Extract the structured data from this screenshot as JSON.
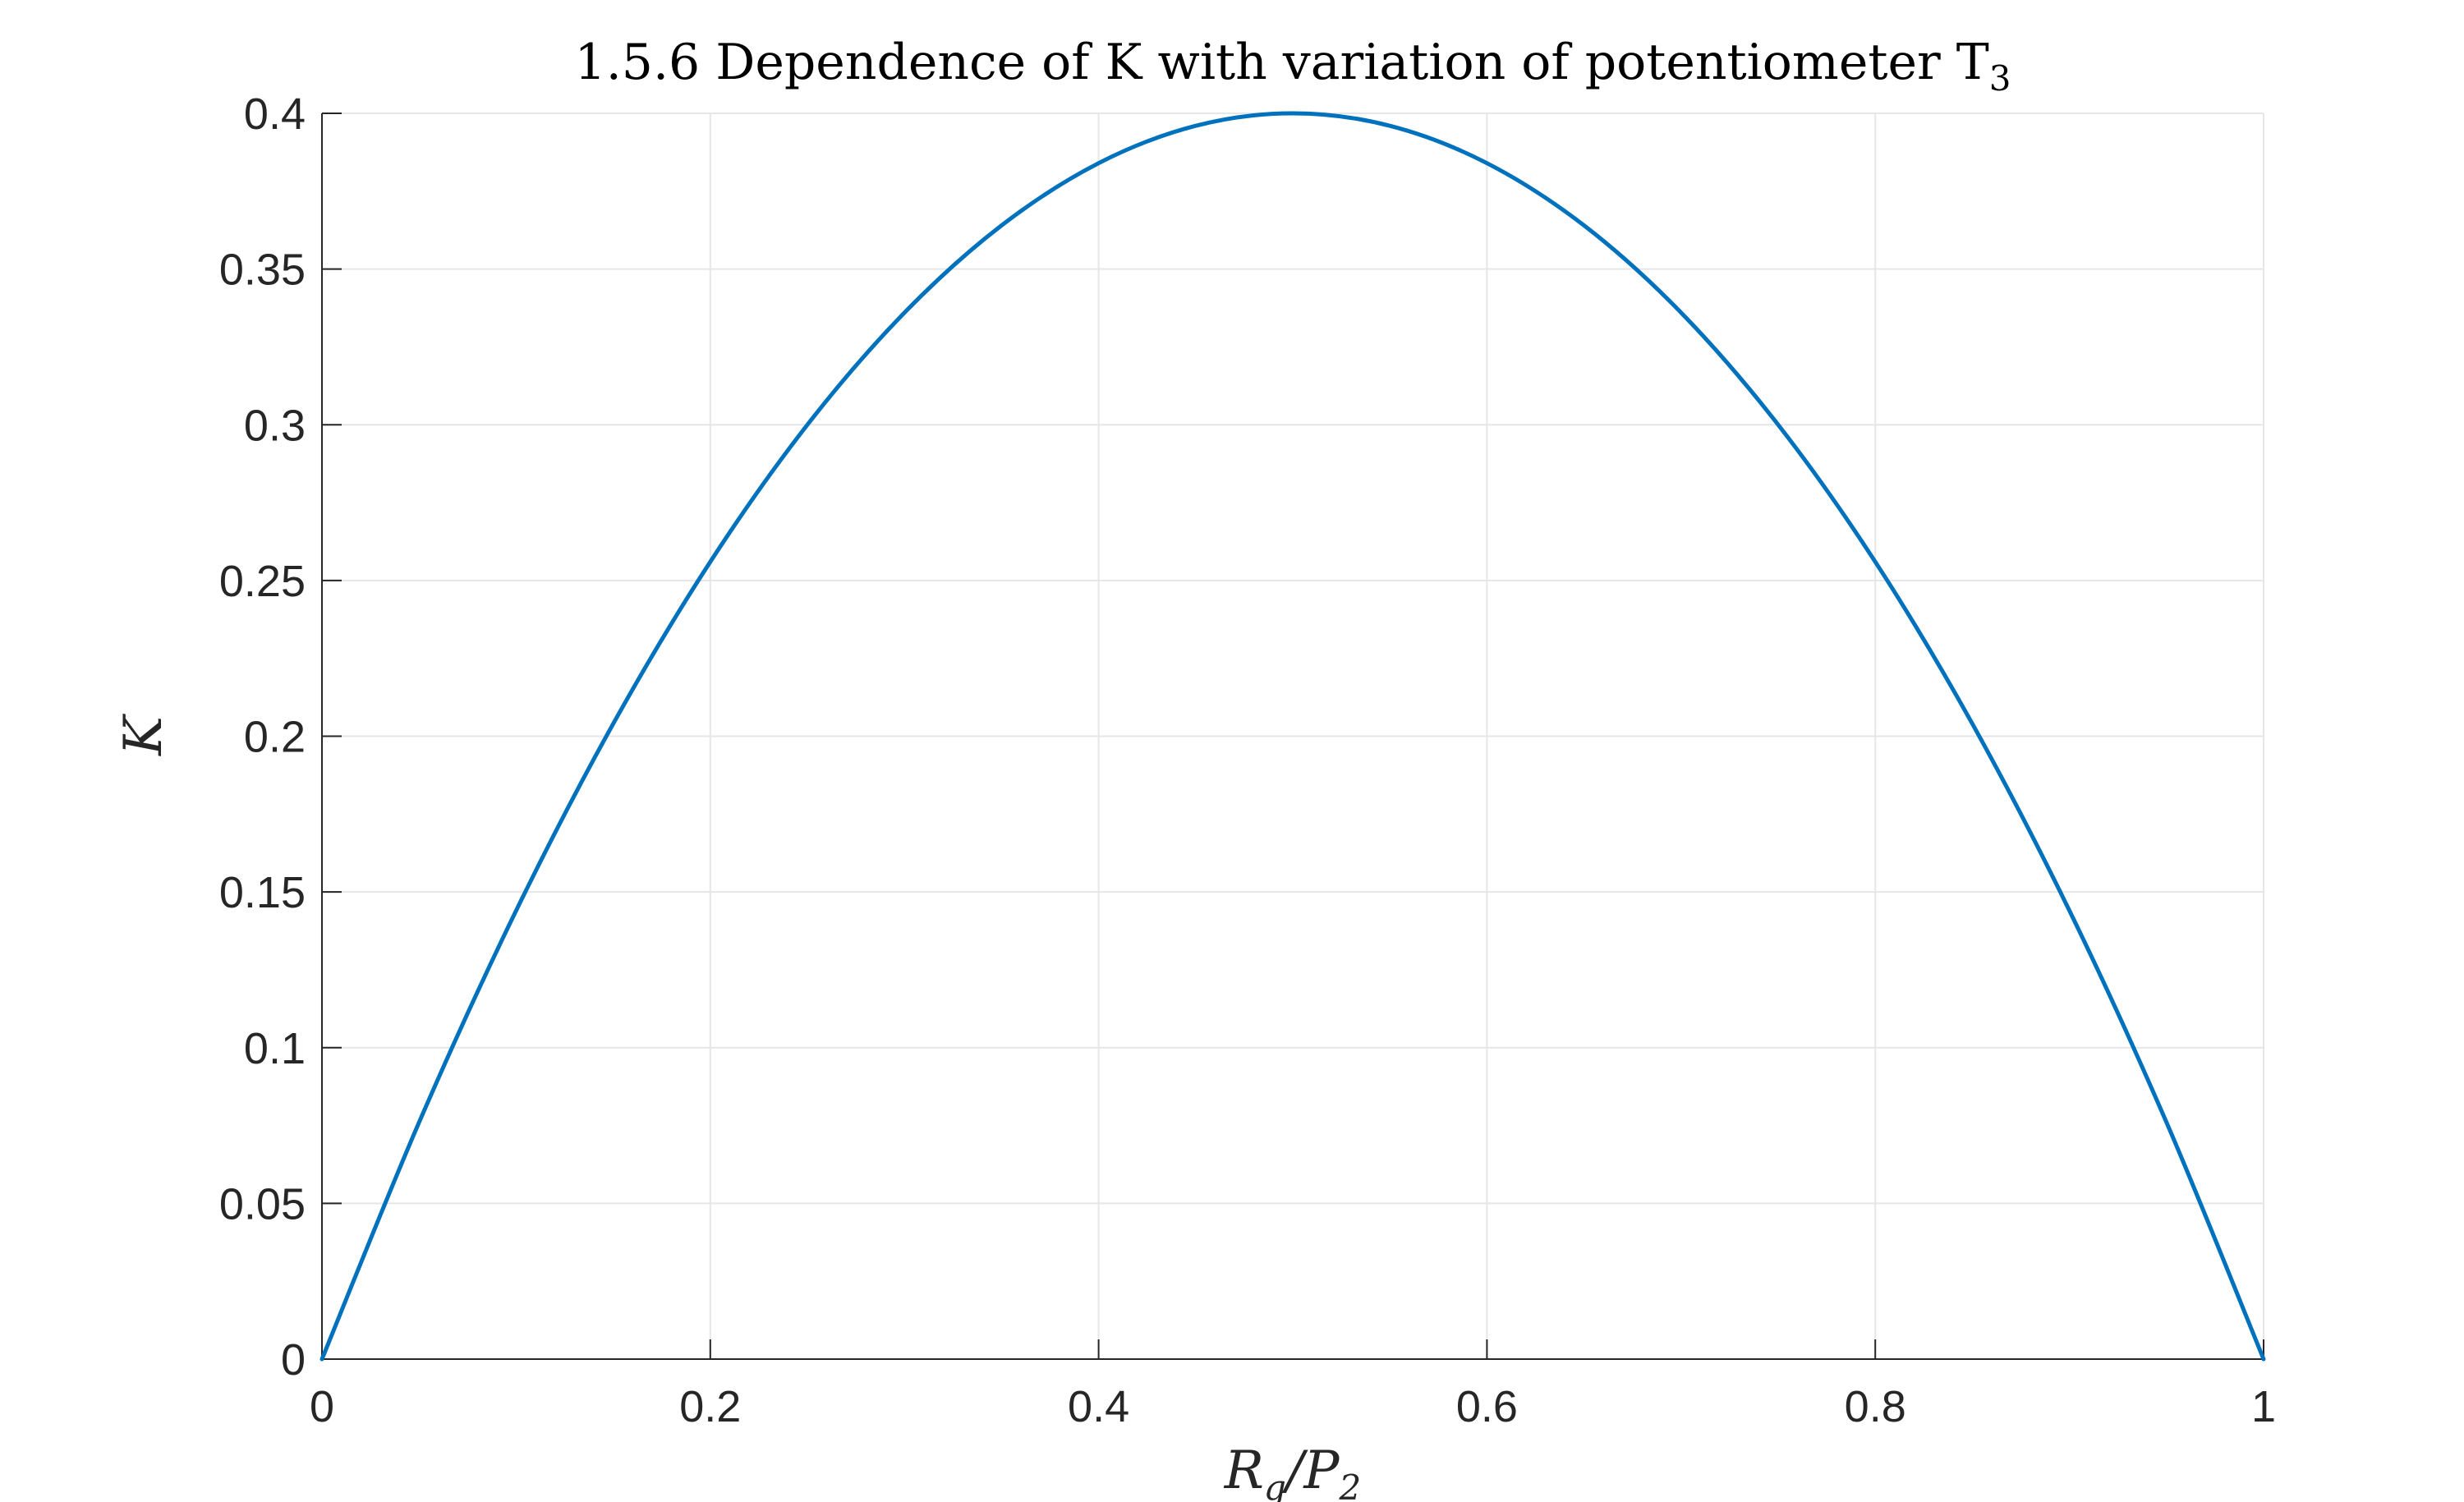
{
  "chart_data": {
    "type": "line",
    "title": {
      "main": "1.5.6 Dependence of K with variation of potentiometer T",
      "subscript": "3"
    },
    "xlabel": {
      "base": "R",
      "sub1": "g",
      "slash": "/P",
      "sub2": "2"
    },
    "ylabel": "K",
    "xlim": [
      0,
      1
    ],
    "ylim": [
      0,
      0.4
    ],
    "x_ticks": [
      0,
      0.2,
      0.4,
      0.6,
      0.8,
      1
    ],
    "x_tick_labels": [
      "0",
      "0.2",
      "0.4",
      "0.6",
      "0.8",
      "1"
    ],
    "y_ticks": [
      0,
      0.05,
      0.1,
      0.15,
      0.2,
      0.25,
      0.3,
      0.35,
      0.4
    ],
    "y_tick_labels": [
      "0",
      "0.05",
      "0.1",
      "0.15",
      "0.2",
      "0.25",
      "0.3",
      "0.35",
      "0.4"
    ],
    "grid": true,
    "series": [
      {
        "color": "#0072bd",
        "x": [
          0,
          0.05,
          0.1,
          0.15,
          0.2,
          0.25,
          0.3,
          0.35,
          0.4,
          0.45,
          0.5,
          0.55,
          0.6,
          0.65,
          0.7,
          0.75,
          0.8,
          0.85,
          0.9,
          0.95,
          1
        ],
        "y": [
          0,
          0.076,
          0.144,
          0.204,
          0.256,
          0.3,
          0.336,
          0.364,
          0.384,
          0.396,
          0.4,
          0.396,
          0.384,
          0.364,
          0.336,
          0.3,
          0.256,
          0.204,
          0.144,
          0.076,
          0
        ]
      }
    ]
  }
}
